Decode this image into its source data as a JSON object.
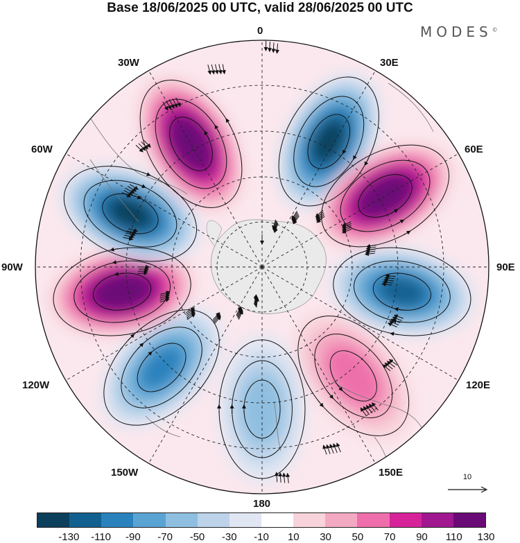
{
  "title": "Base 18/06/2025 00 UTC, valid 28/06/2025 00 UTC",
  "brand": "MODES",
  "brand_mark": "©",
  "longitude_labels": {
    "n0": "0",
    "n30e": "30E",
    "n60e": "60E",
    "n90e": "90E",
    "n120e": "120E",
    "n150e": "150E",
    "n180": "180",
    "n150w": "150W",
    "n120w": "120W",
    "n90w": "90W",
    "n60w": "60W",
    "n30w": "30W"
  },
  "reference_vector": {
    "value": "10"
  },
  "colorbar": {
    "colors": [
      "#0b3f5c",
      "#12608f",
      "#2a82bd",
      "#5aa4d4",
      "#8fbfe0",
      "#bcd3ea",
      "#e0e6f2",
      "#ffffff",
      "#f8d3dc",
      "#f4a9c2",
      "#ee6fab",
      "#d6239a",
      "#a0178f",
      "#6a0a77"
    ],
    "labels": [
      "-130",
      "-110",
      "-90",
      "-70",
      "-50",
      "-30",
      "-10",
      "10",
      "30",
      "50",
      "70",
      "90",
      "110",
      "130"
    ]
  },
  "anomaly_centers": [
    {
      "lon": 28,
      "value": -130
    },
    {
      "lon": 60,
      "value": 130
    },
    {
      "lon": 100,
      "value": -110
    },
    {
      "lon": 140,
      "value": 50
    },
    {
      "lon": 180,
      "value": -50
    },
    {
      "lon": -135,
      "value": -90
    },
    {
      "lon": -100,
      "value": 130
    },
    {
      "lon": -68,
      "value": -130
    },
    {
      "lon": -30,
      "value": 130
    }
  ]
}
